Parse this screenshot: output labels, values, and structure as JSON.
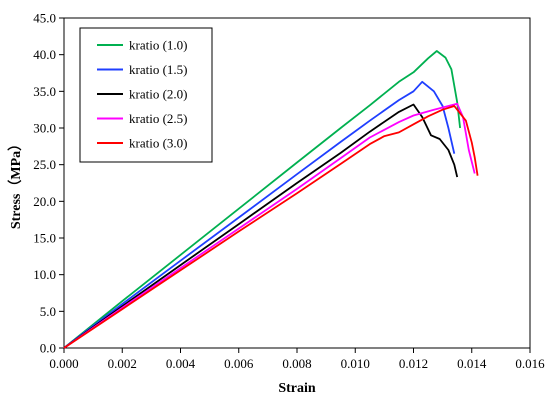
{
  "chart_data": {
    "type": "line",
    "xlabel": "Strain",
    "ylabel": "Stress（MPa）",
    "xlim": [
      0.0,
      0.016
    ],
    "ylim": [
      0.0,
      45.0
    ],
    "xticks": [
      "0.000",
      "0.002",
      "0.004",
      "0.006",
      "0.008",
      "0.010",
      "0.012",
      "0.014",
      "0.016"
    ],
    "yticks": [
      "0.0",
      "5.0",
      "10.0",
      "15.0",
      "20.0",
      "25.0",
      "30.0",
      "35.0",
      "40.0",
      "45.0"
    ],
    "grid": false,
    "legend_position": "top-left",
    "series": [
      {
        "name": "kratio (1.0)",
        "color": "#00b050",
        "points": [
          [
            0.0,
            0.0
          ],
          [
            0.002,
            6.4
          ],
          [
            0.004,
            12.7
          ],
          [
            0.006,
            19.0
          ],
          [
            0.008,
            25.3
          ],
          [
            0.0095,
            30.0
          ],
          [
            0.0105,
            33.1
          ],
          [
            0.0115,
            36.3
          ],
          [
            0.012,
            37.6
          ],
          [
            0.0125,
            39.5
          ],
          [
            0.0128,
            40.5
          ],
          [
            0.0131,
            39.6
          ],
          [
            0.0133,
            38.0
          ],
          [
            0.0135,
            33.5
          ],
          [
            0.0136,
            30.0
          ]
        ]
      },
      {
        "name": "kratio (1.5)",
        "color": "#1f3fff",
        "points": [
          [
            0.0,
            0.0
          ],
          [
            0.002,
            6.0
          ],
          [
            0.004,
            11.9
          ],
          [
            0.006,
            17.8
          ],
          [
            0.008,
            23.7
          ],
          [
            0.0095,
            28.1
          ],
          [
            0.0105,
            31.0
          ],
          [
            0.0115,
            33.8
          ],
          [
            0.012,
            35.0
          ],
          [
            0.0123,
            36.3
          ],
          [
            0.0127,
            35.0
          ],
          [
            0.013,
            33.0
          ],
          [
            0.0132,
            30.0
          ],
          [
            0.0134,
            26.5
          ]
        ]
      },
      {
        "name": "kratio (2.0)",
        "color": "#000000",
        "points": [
          [
            0.0,
            0.0
          ],
          [
            0.002,
            5.7
          ],
          [
            0.004,
            11.3
          ],
          [
            0.006,
            16.9
          ],
          [
            0.008,
            22.5
          ],
          [
            0.0095,
            26.6
          ],
          [
            0.0105,
            29.5
          ],
          [
            0.0115,
            32.2
          ],
          [
            0.012,
            33.2
          ],
          [
            0.0123,
            31.5
          ],
          [
            0.0126,
            29.0
          ],
          [
            0.0129,
            28.5
          ],
          [
            0.0132,
            27.0
          ],
          [
            0.0134,
            25.0
          ],
          [
            0.0135,
            23.3
          ]
        ]
      },
      {
        "name": "kratio (2.5)",
        "color": "#ff00ff",
        "points": [
          [
            0.0,
            0.0
          ],
          [
            0.002,
            5.5
          ],
          [
            0.004,
            10.9
          ],
          [
            0.006,
            16.3
          ],
          [
            0.008,
            21.7
          ],
          [
            0.0095,
            25.9
          ],
          [
            0.0105,
            28.7
          ],
          [
            0.0115,
            30.8
          ],
          [
            0.012,
            31.7
          ],
          [
            0.0127,
            32.5
          ],
          [
            0.0132,
            33.0
          ],
          [
            0.0135,
            33.3
          ],
          [
            0.0137,
            31.5
          ],
          [
            0.0139,
            27.0
          ],
          [
            0.0141,
            23.8
          ]
        ]
      },
      {
        "name": "kratio (3.0)",
        "color": "#ff0000",
        "points": [
          [
            0.0,
            0.0
          ],
          [
            0.002,
            5.3
          ],
          [
            0.004,
            10.6
          ],
          [
            0.006,
            15.9
          ],
          [
            0.008,
            21.1
          ],
          [
            0.0095,
            25.1
          ],
          [
            0.0105,
            27.8
          ],
          [
            0.011,
            28.9
          ],
          [
            0.0115,
            29.4
          ],
          [
            0.012,
            30.5
          ],
          [
            0.0125,
            31.6
          ],
          [
            0.013,
            32.5
          ],
          [
            0.0134,
            33.0
          ],
          [
            0.0138,
            31.0
          ],
          [
            0.014,
            28.0
          ],
          [
            0.0141,
            26.0
          ],
          [
            0.0142,
            23.5
          ]
        ]
      }
    ]
  }
}
